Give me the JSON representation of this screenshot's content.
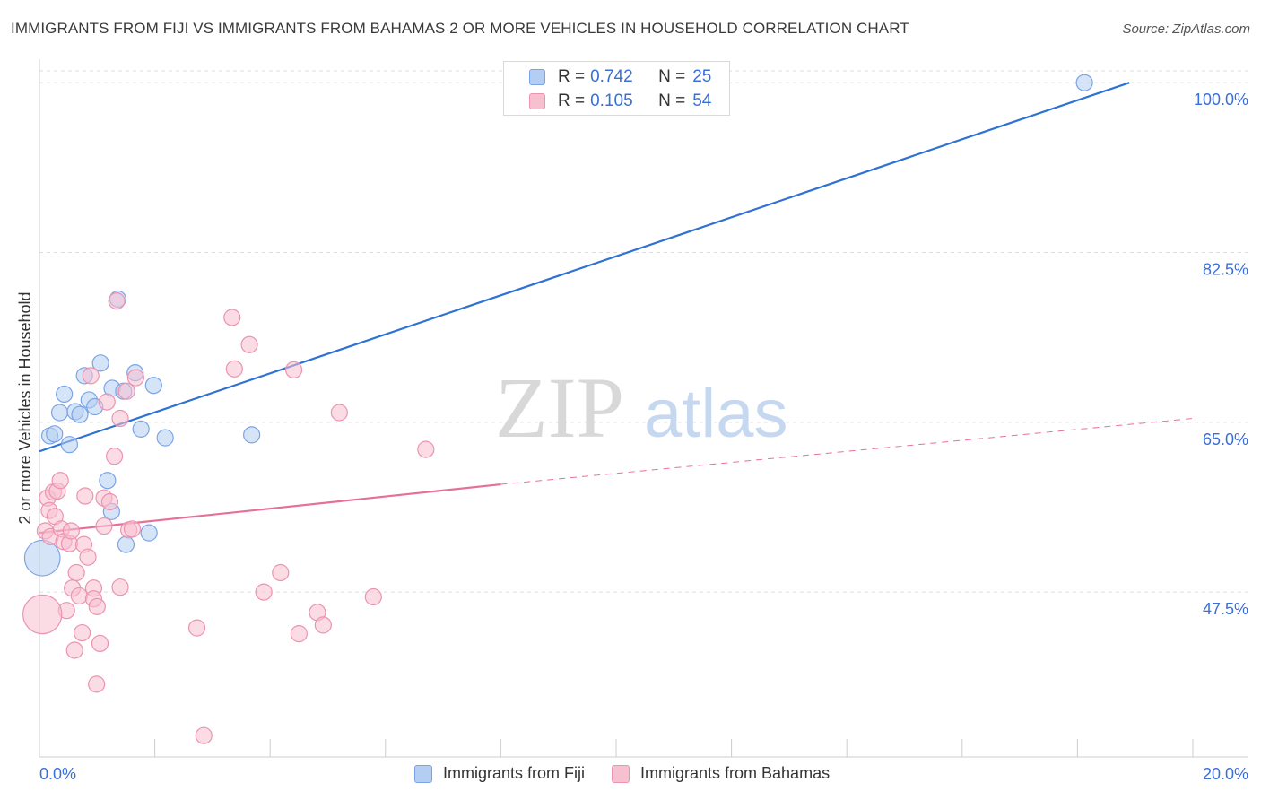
{
  "title": "IMMIGRANTS FROM FIJI VS IMMIGRANTS FROM BAHAMAS 2 OR MORE VEHICLES IN HOUSEHOLD CORRELATION CHART",
  "source": "Source: ZipAtlas.com",
  "watermark": {
    "zip": "ZIP",
    "atlas": "atlas"
  },
  "legend_top": {
    "rows": [
      {
        "r_label": "R =",
        "r_value": "0.742",
        "n_label": "N =",
        "n_value": "25"
      },
      {
        "r_label": "R =",
        "r_value": "0.105",
        "n_label": "N =",
        "n_value": "54"
      }
    ]
  },
  "colors": {
    "fiji_fill": "#b4cdf3",
    "fiji_stroke": "#7aa4e6",
    "fiji_line": "#2f72d4",
    "bahamas_fill": "#f7c0d0",
    "bahamas_stroke": "#ec93b0",
    "bahamas_line": "#e5709a",
    "axis_label": "#3a6fd8",
    "grid": "#dddddd"
  },
  "chart_data": {
    "type": "scatter",
    "title": "IMMIGRANTS FROM FIJI VS IMMIGRANTS FROM BAHAMAS 2 OR MORE VEHICLES IN HOUSEHOLD CORRELATION CHART",
    "xlabel": "",
    "ylabel": "2 or more Vehicles in Household",
    "xlim": [
      0,
      20
    ],
    "ylim": [
      30.5,
      101.5
    ],
    "x_tick_labels": {
      "min": "0.0%",
      "max": "20.0%"
    },
    "y_ticks": [
      {
        "value": 100.0,
        "label": "100.0%"
      },
      {
        "value": 82.5,
        "label": "82.5%"
      },
      {
        "value": 65.0,
        "label": "65.0%"
      },
      {
        "value": 47.5,
        "label": "47.5%"
      }
    ],
    "legend": [
      "Immigrants from Fiji",
      "Immigrants from Bahamas"
    ],
    "series": [
      {
        "name": "Immigrants from Fiji",
        "points": [
          [
            0.18,
            63.6
          ],
          [
            0.26,
            63.8
          ],
          [
            0.35,
            66.0
          ],
          [
            0.43,
            67.9
          ],
          [
            0.52,
            62.7
          ],
          [
            0.62,
            66.1
          ],
          [
            0.7,
            65.8
          ],
          [
            0.78,
            69.8
          ],
          [
            0.86,
            67.3
          ],
          [
            0.96,
            66.6
          ],
          [
            1.06,
            71.1
          ],
          [
            1.18,
            59.0
          ],
          [
            1.26,
            68.5
          ],
          [
            1.36,
            77.7
          ],
          [
            1.46,
            68.2
          ],
          [
            1.66,
            70.1
          ],
          [
            1.76,
            64.3
          ],
          [
            1.98,
            68.8
          ],
          [
            2.18,
            63.4
          ],
          [
            1.25,
            55.8
          ],
          [
            1.5,
            52.4
          ],
          [
            1.9,
            53.6
          ],
          [
            3.68,
            63.7
          ],
          [
            18.12,
            100.0
          ],
          [
            0.05,
            51.0
          ]
        ],
        "sizes": [
          1,
          1,
          1,
          1,
          1,
          1,
          1,
          1,
          1,
          1,
          1,
          1,
          1,
          1,
          1,
          1,
          1,
          1,
          1,
          1,
          1,
          1,
          1,
          1,
          2.2
        ],
        "trend": {
          "x": [
            0,
            18.9
          ],
          "y": [
            62.0,
            100.0
          ],
          "dashed_to": null
        }
      },
      {
        "name": "Immigrants from Bahamas",
        "points": [
          [
            0.1,
            53.8
          ],
          [
            0.14,
            57.2
          ],
          [
            0.17,
            55.9
          ],
          [
            0.19,
            53.2
          ],
          [
            0.24,
            57.8
          ],
          [
            0.27,
            55.3
          ],
          [
            0.31,
            57.9
          ],
          [
            0.36,
            59.0
          ],
          [
            0.38,
            54.0
          ],
          [
            0.42,
            52.7
          ],
          [
            0.47,
            45.6
          ],
          [
            0.52,
            52.5
          ],
          [
            0.57,
            47.9
          ],
          [
            0.61,
            41.5
          ],
          [
            0.64,
            49.5
          ],
          [
            0.69,
            47.1
          ],
          [
            0.74,
            43.3
          ],
          [
            0.77,
            52.4
          ],
          [
            0.79,
            57.4
          ],
          [
            0.84,
            51.1
          ],
          [
            0.89,
            69.8
          ],
          [
            0.94,
            47.9
          ],
          [
            0.99,
            38.0
          ],
          [
            1.05,
            42.2
          ],
          [
            1.12,
            54.3
          ],
          [
            1.12,
            57.2
          ],
          [
            1.17,
            67.1
          ],
          [
            1.22,
            56.8
          ],
          [
            1.3,
            61.5
          ],
          [
            1.34,
            77.5
          ],
          [
            1.4,
            65.4
          ],
          [
            1.51,
            68.2
          ],
          [
            1.55,
            53.9
          ],
          [
            1.61,
            54.0
          ],
          [
            1.67,
            69.6
          ],
          [
            0.94,
            46.8
          ],
          [
            2.73,
            43.8
          ],
          [
            2.85,
            32.7
          ],
          [
            3.34,
            75.8
          ],
          [
            3.38,
            70.5
          ],
          [
            3.64,
            73.0
          ],
          [
            3.89,
            47.5
          ],
          [
            4.18,
            49.5
          ],
          [
            4.41,
            70.4
          ],
          [
            4.5,
            43.2
          ],
          [
            4.82,
            45.4
          ],
          [
            4.92,
            44.1
          ],
          [
            5.2,
            66.0
          ],
          [
            5.79,
            47.0
          ],
          [
            6.7,
            62.2
          ],
          [
            1.0,
            46.0
          ],
          [
            0.55,
            53.8
          ],
          [
            1.4,
            48.0
          ],
          [
            0.05,
            45.2
          ]
        ],
        "sizes": [
          1,
          1,
          1,
          1,
          1,
          1,
          1,
          1,
          1,
          1,
          1,
          1,
          1,
          1,
          1,
          1,
          1,
          1,
          1,
          1,
          1,
          1,
          1,
          1,
          1,
          1,
          1,
          1,
          1,
          1,
          1,
          1,
          1,
          1,
          1,
          1,
          1,
          1,
          1,
          1,
          1,
          1,
          1,
          1,
          1,
          1,
          1,
          1,
          1,
          1,
          1,
          1,
          1,
          2.4
        ],
        "trend": {
          "x": [
            0,
            8.0
          ],
          "y": [
            53.6,
            58.6
          ],
          "dashed_to": [
            20.0,
            65.4
          ]
        }
      }
    ]
  }
}
